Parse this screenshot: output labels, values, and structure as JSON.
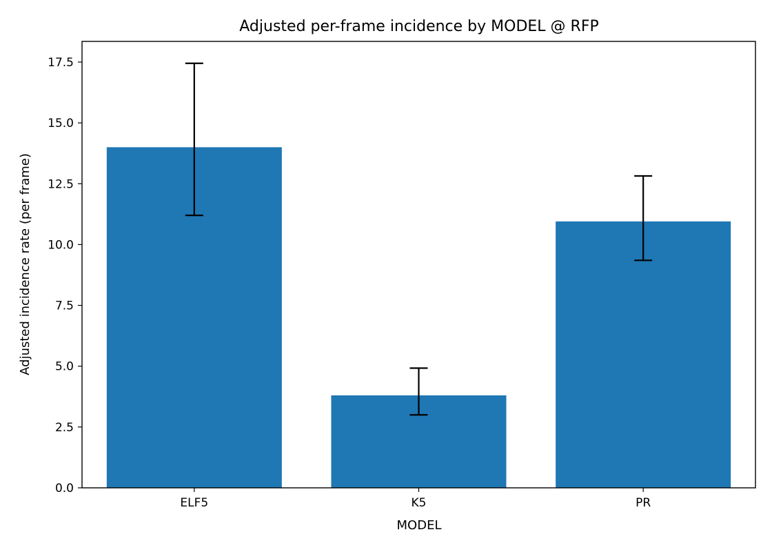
{
  "chart_data": {
    "type": "bar",
    "title": "Adjusted per-frame incidence by MODEL @ RFP",
    "xlabel": "MODEL",
    "ylabel": "Adjusted incidence rate (per frame)",
    "categories": [
      "ELF5",
      "K5",
      "PR"
    ],
    "values": [
      14.0,
      3.8,
      10.95
    ],
    "error_low": [
      11.2,
      3.0,
      9.35
    ],
    "error_high": [
      17.45,
      4.92,
      12.82
    ],
    "ylim": [
      0,
      18.35
    ],
    "yticks": [
      0.0,
      2.5,
      5.0,
      7.5,
      10.0,
      12.5,
      15.0,
      17.5
    ],
    "ytick_labels": [
      "0.0",
      "2.5",
      "5.0",
      "7.5",
      "10.0",
      "12.5",
      "15.0",
      "17.5"
    ],
    "bar_color": "#1f77b4",
    "error_color": "#000000",
    "grid": false,
    "legend": "none"
  }
}
